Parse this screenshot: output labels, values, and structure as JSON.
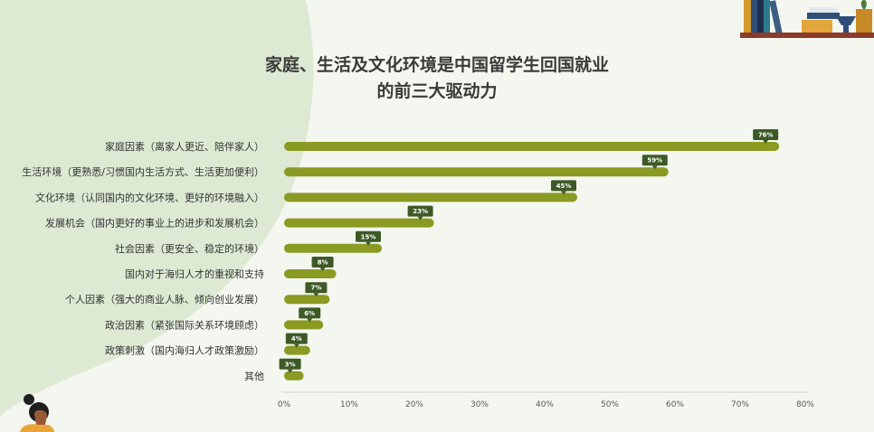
{
  "title_line1": "家庭、生活及文化环境是中国留学生回国就业",
  "title_line2": "的前三大驱动力",
  "colors": {
    "bar": "#8a9a22",
    "bubble": "#3d5a26",
    "background": "#f4f7f0",
    "blob": "#dde9d3"
  },
  "chart_data": {
    "type": "bar",
    "orientation": "horizontal",
    "title": "家庭、生活及文化环境是中国留学生回国就业的前三大驱动力",
    "categories": [
      "家庭因素（离家人更近、陪伴家人）",
      "生活环境（更熟悉/习惯国内生活方式、生活更加便利）",
      "文化环境（认同国内的文化环境、更好的环境融入）",
      "发展机会（国内更好的事业上的进步和发展机会）",
      "社会因素（更安全、稳定的环境）",
      "国内对于海归人才的重视和支持",
      "个人因素（强大的商业人脉、倾向创业发展）",
      "政治因素（紧张国际关系环境顾虑）",
      "政策刺激（国内海归人才政策激励）",
      "其他"
    ],
    "values": [
      76,
      59,
      45,
      23,
      15,
      8,
      7,
      6,
      4,
      3
    ],
    "value_labels": [
      "76%",
      "59%",
      "45%",
      "23%",
      "15%",
      "8%",
      "7%",
      "6%",
      "4%",
      "3%"
    ],
    "xlim": [
      0,
      80
    ],
    "x_ticks": [
      "0%",
      "10%",
      "20%",
      "30%",
      "40%",
      "50%",
      "60%",
      "70%",
      "80%"
    ],
    "grid": false
  }
}
